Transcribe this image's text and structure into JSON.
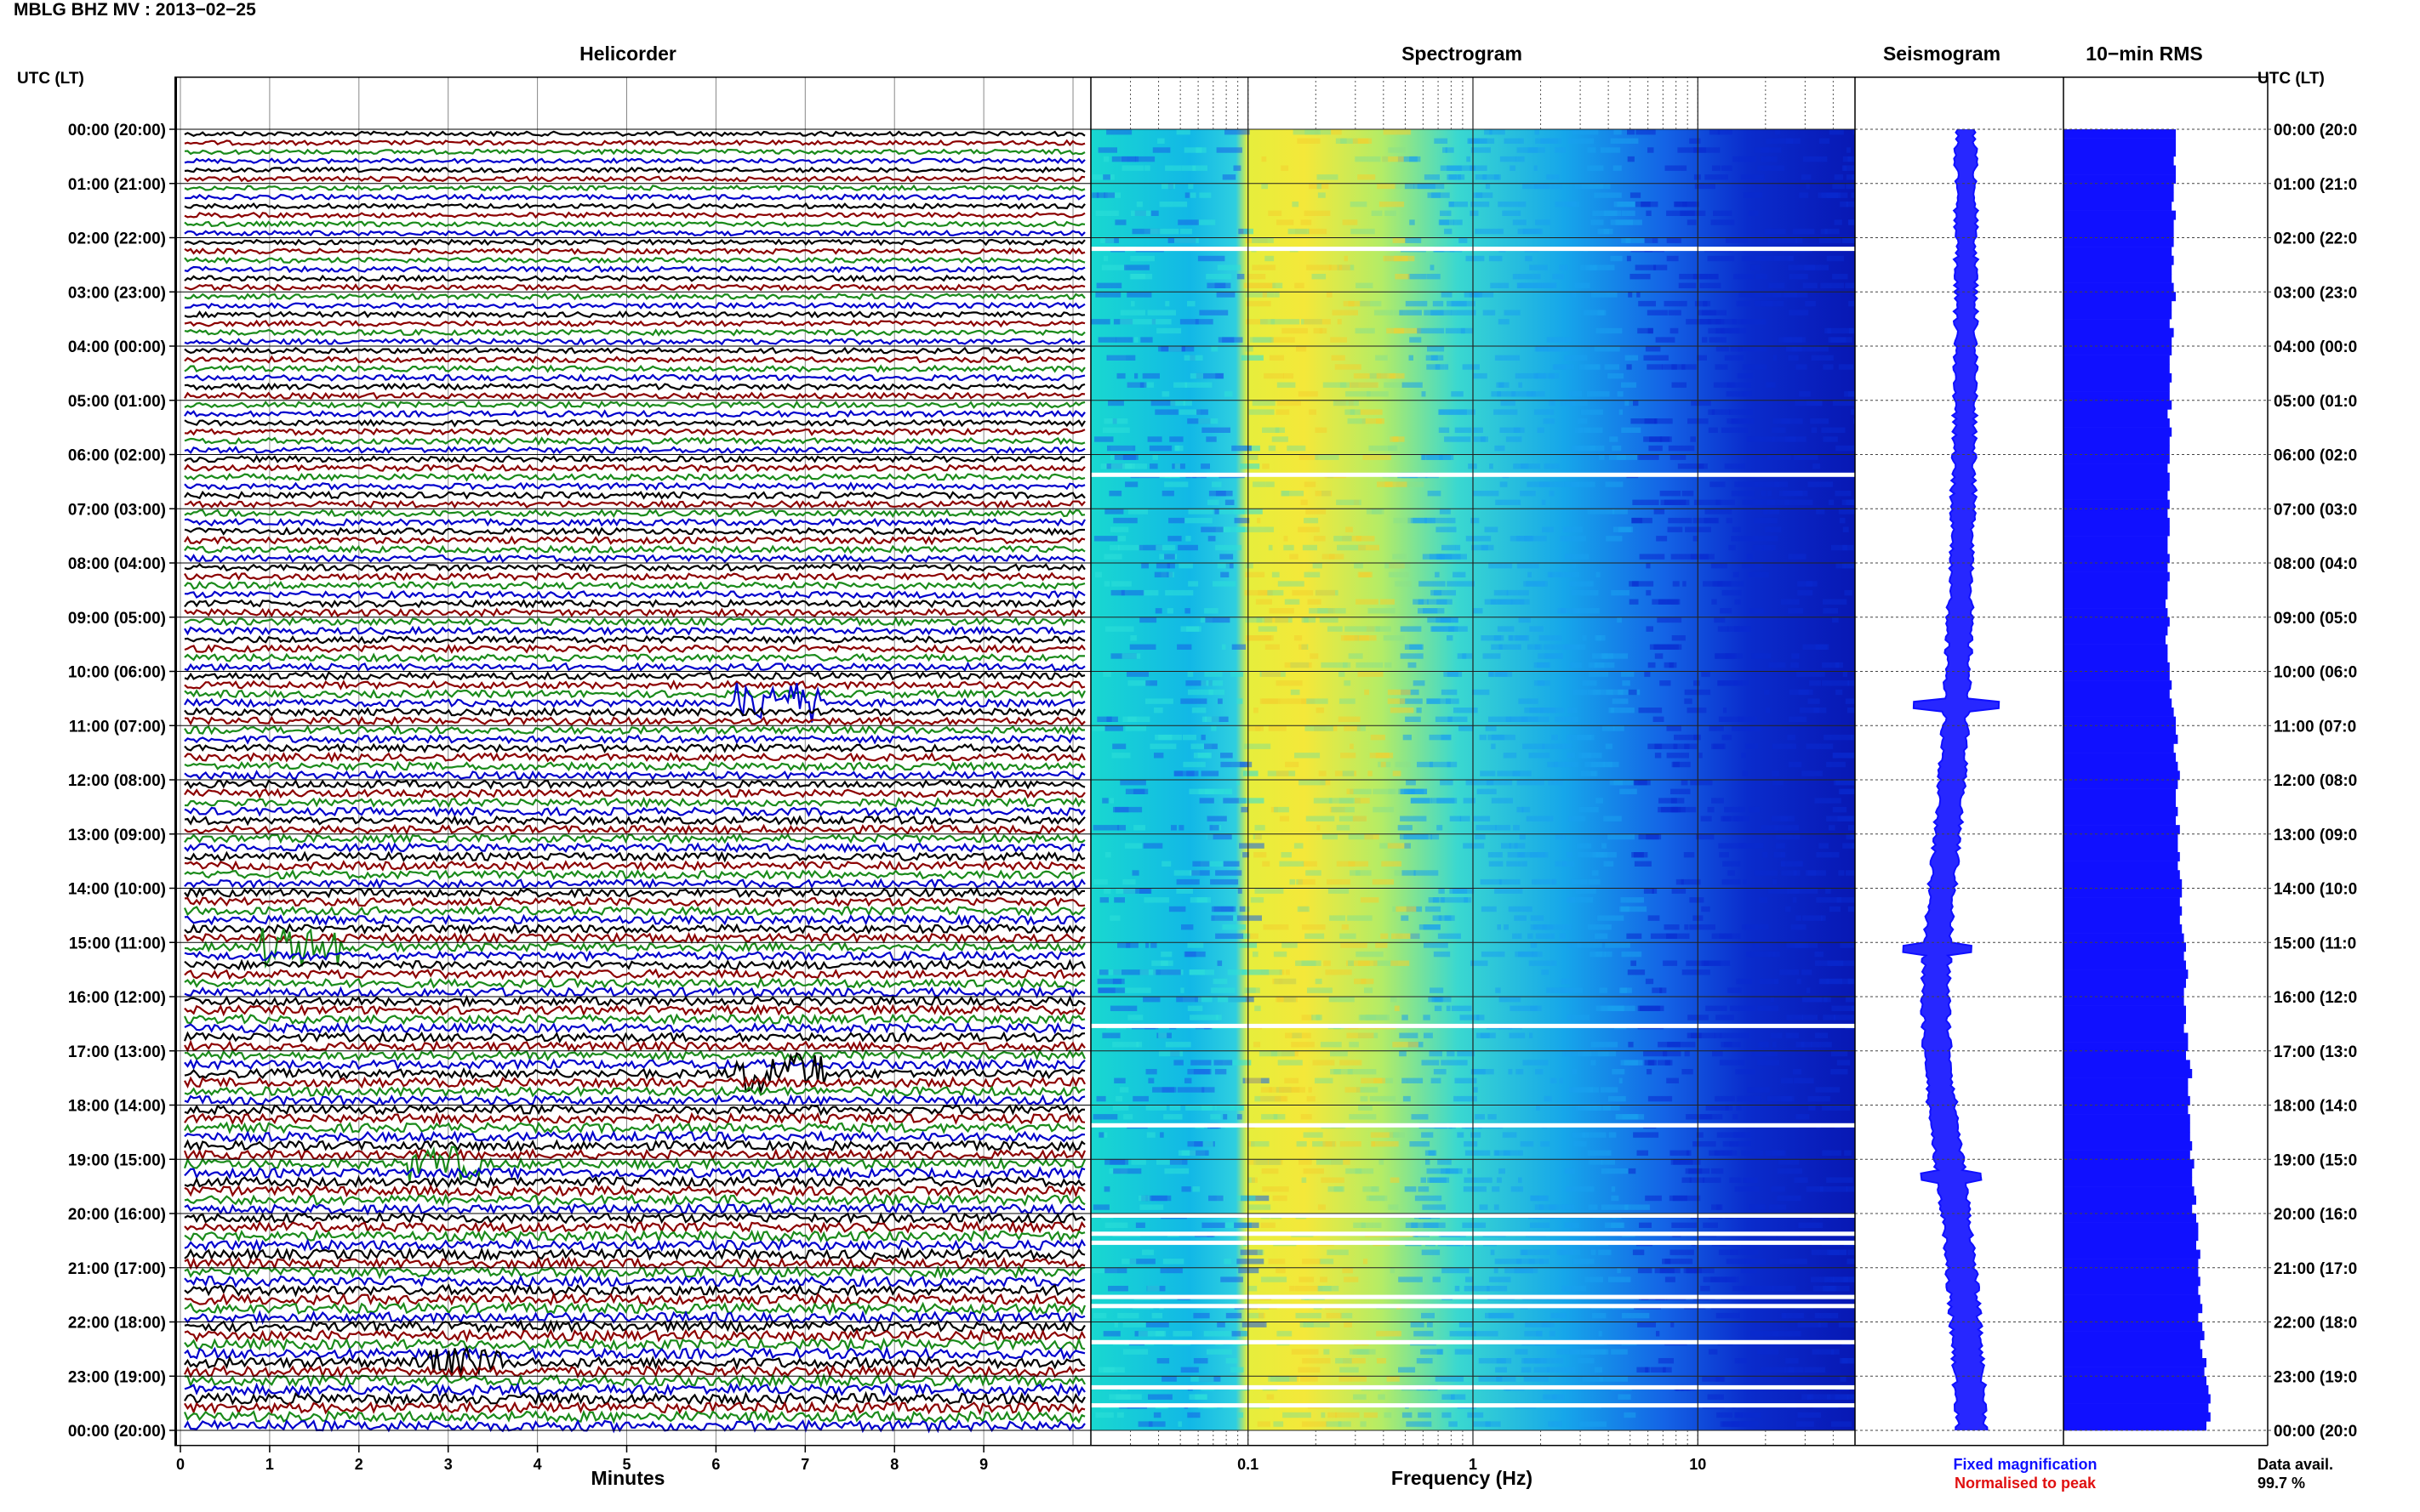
{
  "title": "MBLG BHZ MV : 2013−02−25",
  "panels": {
    "helicorder": "Helicorder",
    "spectrogram": "Spectrogram",
    "seismogram": "Seismogram",
    "rms": "10−min RMS"
  },
  "utc_header_left": "UTC (LT)",
  "utc_header_right": "UTC (LT)",
  "time_labels": [
    "00:00 (20:00)",
    "01:00 (21:00)",
    "02:00 (22:00)",
    "03:00 (23:00)",
    "04:00 (00:00)",
    "05:00 (01:00)",
    "06:00 (02:00)",
    "07:00 (03:00)",
    "08:00 (04:00)",
    "09:00 (05:00)",
    "10:00 (06:00)",
    "11:00 (07:00)",
    "12:00 (08:00)",
    "13:00 (09:00)",
    "14:00 (10:00)",
    "15:00 (11:00)",
    "16:00 (12:00)",
    "17:00 (13:00)",
    "18:00 (14:00)",
    "19:00 (15:00)",
    "20:00 (16:00)",
    "21:00 (17:00)",
    "22:00 (18:00)",
    "23:00 (19:00)",
    "00:00 (20:00)"
  ],
  "right_time_labels": [
    "00:00 (20:0",
    "01:00 (21:0",
    "02:00 (22:0",
    "03:00 (23:0",
    "04:00 (00:0",
    "05:00 (01:0",
    "06:00 (02:0",
    "07:00 (03:0",
    "08:00 (04:0",
    "09:00 (05:0",
    "10:00 (06:0",
    "11:00 (07:0",
    "12:00 (08:0",
    "13:00 (09:0",
    "14:00 (10:0",
    "15:00 (11:0",
    "16:00 (12:0",
    "17:00 (13:0",
    "18:00 (14:0",
    "19:00 (15:0",
    "20:00 (16:0",
    "21:00 (17:0",
    "22:00 (18:0",
    "23:00 (19:0",
    "00:00 (20:0"
  ],
  "helicorder_x": {
    "ticks": [
      "0",
      "1",
      "2",
      "3",
      "4",
      "5",
      "6",
      "7",
      "8",
      "9"
    ],
    "range": [
      0,
      10
    ],
    "label": "Minutes"
  },
  "spectrogram_x": {
    "scale": "log",
    "range": [
      0.02,
      50
    ],
    "ticks": [
      {
        "value": 0.1,
        "label": "0.1"
      },
      {
        "value": 1,
        "label": "1"
      },
      {
        "value": 10,
        "label": "10"
      }
    ],
    "label": "Frequency (Hz)"
  },
  "legend": {
    "fixed": "Fixed magnification",
    "normalised": "Normalised to peak",
    "fixed_color": "#1010ff",
    "normalised_color": "#e01010"
  },
  "data_avail": {
    "label": "Data avail.",
    "value": "99.7 %"
  },
  "trace_colors": [
    "#000000",
    "#8b0000",
    "#1a8a1a",
    "#0000cc"
  ],
  "chart_data": [
    {
      "type": "line",
      "name": "helicorder",
      "x_units": "minutes",
      "xlim": [
        0,
        10
      ],
      "rows_per_hour": 6,
      "hours": 24,
      "notes_events_utc": [
        "10:30",
        "15:00",
        "17:20",
        "19:00",
        "22:40"
      ]
    },
    {
      "type": "heatmap",
      "name": "spectrogram",
      "x_scale": "log",
      "xlim": [
        0.02,
        50
      ],
      "y_range_utc": [
        "00:00",
        "24:00"
      ],
      "dominant_band_hz": [
        0.1,
        0.3
      ],
      "gap_rows_utc": [
        "02:10",
        "06:20",
        "16:30",
        "18:20",
        "20:00",
        "20:20",
        "20:30",
        "21:30",
        "21:40",
        "22:20",
        "23:10",
        "23:30"
      ]
    },
    {
      "type": "bar",
      "name": "10-min RMS",
      "orientation": "horizontal",
      "rows": 144,
      "values_relative": [
        0.55,
        0.55,
        0.55,
        0.54,
        0.55,
        0.55,
        0.54,
        0.54,
        0.53,
        0.55,
        0.54,
        0.54,
        0.54,
        0.53,
        0.54,
        0.53,
        0.53,
        0.54,
        0.55,
        0.53,
        0.53,
        0.52,
        0.54,
        0.53,
        0.53,
        0.52,
        0.52,
        0.53,
        0.52,
        0.52,
        0.53,
        0.51,
        0.52,
        0.53,
        0.52,
        0.52,
        0.52,
        0.51,
        0.52,
        0.52,
        0.51,
        0.52,
        0.51,
        0.52,
        0.52,
        0.51,
        0.51,
        0.52,
        0.51,
        0.52,
        0.51,
        0.51,
        0.5,
        0.51,
        0.52,
        0.51,
        0.5,
        0.51,
        0.51,
        0.52,
        0.52,
        0.53,
        0.52,
        0.53,
        0.54,
        0.55,
        0.55,
        0.56,
        0.54,
        0.55,
        0.56,
        0.57,
        0.56,
        0.55,
        0.55,
        0.56,
        0.55,
        0.57,
        0.56,
        0.56,
        0.57,
        0.56,
        0.57,
        0.58,
        0.58,
        0.57,
        0.58,
        0.57,
        0.58,
        0.59,
        0.6,
        0.59,
        0.6,
        0.61,
        0.6,
        0.59,
        0.59,
        0.6,
        0.6,
        0.59,
        0.61,
        0.61,
        0.6,
        0.62,
        0.63,
        0.61,
        0.61,
        0.62,
        0.61,
        0.62,
        0.62,
        0.62,
        0.63,
        0.62,
        0.64,
        0.63,
        0.63,
        0.64,
        0.65,
        0.63,
        0.65,
        0.66,
        0.66,
        0.65,
        0.67,
        0.66,
        0.66,
        0.67,
        0.66,
        0.67,
        0.68,
        0.66,
        0.68,
        0.69,
        0.67,
        0.68,
        0.7,
        0.69,
        0.7,
        0.71,
        0.72,
        0.71,
        0.72,
        0.7
      ]
    }
  ]
}
